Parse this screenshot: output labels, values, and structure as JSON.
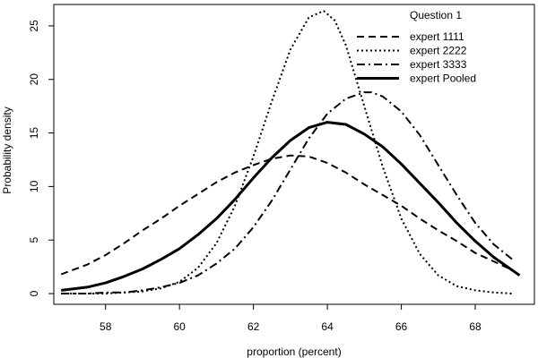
{
  "chart_data": {
    "type": "line",
    "xlabel": "proportion (percent)",
    "ylabel": "Probability density",
    "xlim": [
      56.6,
      69.6
    ],
    "ylim": [
      -1.0,
      27.0
    ],
    "xticks": [
      58,
      60,
      62,
      64,
      66,
      68
    ],
    "yticks": [
      0,
      5,
      10,
      15,
      20,
      25
    ],
    "legend": {
      "title": "Question 1",
      "position": "top-right"
    },
    "series": [
      {
        "name": "expert 1111",
        "style": "dashed",
        "color": "#000000",
        "x": [
          56.8,
          57.5,
          58.0,
          58.5,
          59.0,
          59.5,
          60.0,
          60.5,
          61.0,
          61.5,
          62.0,
          62.5,
          63.0,
          63.5,
          64.0,
          64.5,
          65.0,
          65.5,
          66.0,
          66.5,
          67.0,
          67.5,
          68.0,
          68.5,
          69.0
        ],
        "values": [
          1.8,
          2.7,
          3.6,
          4.7,
          5.9,
          7.0,
          8.2,
          9.3,
          10.4,
          11.3,
          12.0,
          12.6,
          12.9,
          12.8,
          12.2,
          11.3,
          10.2,
          9.2,
          8.2,
          7.0,
          5.9,
          4.9,
          3.8,
          3.0,
          2.2
        ]
      },
      {
        "name": "expert 2222",
        "style": "dotted",
        "color": "#000000",
        "x": [
          56.8,
          57.5,
          58.0,
          58.5,
          59.0,
          59.5,
          60.0,
          60.5,
          61.0,
          61.5,
          62.0,
          62.5,
          63.0,
          63.5,
          63.9,
          64.2,
          64.5,
          65.0,
          65.5,
          66.0,
          66.5,
          67.0,
          67.5,
          68.0,
          68.5,
          69.0
        ],
        "values": [
          0.0,
          0.0,
          0.0,
          0.1,
          0.2,
          0.5,
          1.1,
          2.4,
          4.7,
          8.2,
          12.8,
          18.0,
          22.8,
          25.8,
          26.4,
          25.5,
          23.2,
          17.5,
          11.8,
          7.0,
          3.7,
          1.7,
          0.7,
          0.3,
          0.1,
          0.0
        ]
      },
      {
        "name": "expert 3333",
        "style": "dashdot",
        "color": "#000000",
        "x": [
          56.8,
          57.5,
          58.0,
          58.5,
          59.0,
          59.5,
          60.0,
          60.5,
          61.0,
          61.5,
          62.0,
          62.5,
          63.0,
          63.5,
          64.0,
          64.5,
          65.0,
          65.2,
          65.5,
          66.0,
          66.5,
          67.0,
          67.5,
          68.0,
          68.5,
          69.0
        ],
        "values": [
          0.0,
          0.0,
          0.1,
          0.1,
          0.3,
          0.6,
          1.0,
          1.7,
          2.8,
          4.2,
          6.2,
          8.7,
          11.6,
          14.5,
          16.8,
          18.2,
          18.8,
          18.8,
          18.4,
          17.0,
          14.8,
          12.0,
          9.2,
          6.6,
          4.6,
          3.2
        ]
      },
      {
        "name": "expert Pooled",
        "style": "solid-thick",
        "color": "#000000",
        "x": [
          56.8,
          57.5,
          58.0,
          58.5,
          59.0,
          59.5,
          60.0,
          60.5,
          61.0,
          61.5,
          62.0,
          62.5,
          63.0,
          63.5,
          64.0,
          64.5,
          65.0,
          65.5,
          66.0,
          66.5,
          67.0,
          67.5,
          68.0,
          68.5,
          69.2
        ],
        "values": [
          0.3,
          0.6,
          1.0,
          1.6,
          2.3,
          3.2,
          4.2,
          5.5,
          7.0,
          8.8,
          10.8,
          12.7,
          14.3,
          15.5,
          16.0,
          15.8,
          14.9,
          13.7,
          12.1,
          10.3,
          8.5,
          6.6,
          4.9,
          3.4,
          1.7
        ]
      }
    ]
  }
}
